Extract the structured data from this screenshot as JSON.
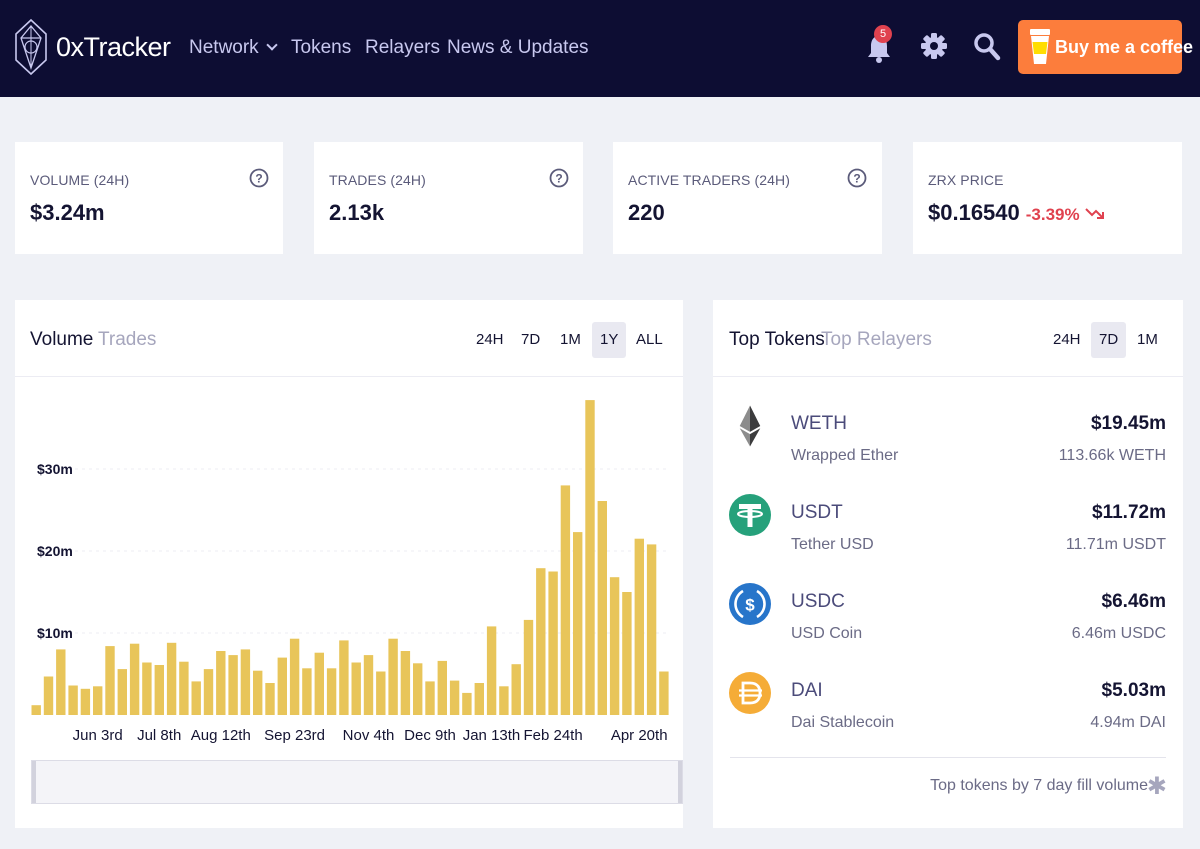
{
  "header": {
    "brand": "0xTracker",
    "nav": [
      {
        "label": "Network",
        "has_dropdown": true
      },
      {
        "label": "Tokens"
      },
      {
        "label": "Relayers"
      },
      {
        "label": "News & Updates"
      }
    ],
    "notification_count": "5",
    "coffee_label": "Buy me a coffee",
    "colors": {
      "background": "#0d0d33",
      "coffee": "#fc7d3c",
      "badge": "#e0424f"
    }
  },
  "stats": [
    {
      "label": "Volume (24h)",
      "value": "$3.24m",
      "has_help": true
    },
    {
      "label": "Trades (24h)",
      "value": "2.13k",
      "has_help": true
    },
    {
      "label": "Active Traders (24h)",
      "value": "220",
      "has_help": true
    },
    {
      "label": "ZRX Price",
      "value": "$0.16540",
      "change": "-3.39%",
      "trend": "down"
    }
  ],
  "volume_panel": {
    "tabs": [
      {
        "label": "Volume",
        "active": true
      },
      {
        "label": "Trades",
        "active": false
      }
    ],
    "periods": [
      {
        "label": "24H",
        "selected": false
      },
      {
        "label": "7D",
        "selected": false
      },
      {
        "label": "1M",
        "selected": false
      },
      {
        "label": "1Y",
        "selected": true
      },
      {
        "label": "ALL",
        "selected": false
      }
    ]
  },
  "chart_data": {
    "type": "bar",
    "color": "#e8c55a",
    "y_tick_labels": [
      "$10m",
      "$20m",
      "$30m"
    ],
    "y_ticks": [
      10,
      20,
      30
    ],
    "ylim": [
      0,
      40
    ],
    "x_tick_labels": [
      "Jun 3rd",
      "Jul 8th",
      "Aug 12th",
      "Sep 23rd",
      "Nov 4th",
      "Dec 9th",
      "Jan 13th",
      "Feb 24th",
      "Apr 20th"
    ],
    "x_tick_bar_index": [
      5,
      10,
      15,
      21,
      27,
      32,
      37,
      42,
      49
    ],
    "values": [
      1.2,
      4.7,
      8,
      3.6,
      3.2,
      3.5,
      8.4,
      5.6,
      8.7,
      6.4,
      6.1,
      8.8,
      6.5,
      4.1,
      5.6,
      7.8,
      7.3,
      8.0,
      5.4,
      3.9,
      7.0,
      9.3,
      5.7,
      7.6,
      5.7,
      9.1,
      6.4,
      7.3,
      5.3,
      9.3,
      7.8,
      6.3,
      4.1,
      6.6,
      4.2,
      2.7,
      3.9,
      10.8,
      3.5,
      6.2,
      11.6,
      17.9,
      17.5,
      28.0,
      22.3,
      38.4,
      26.1,
      16.8,
      15.0,
      21.5,
      20.8,
      5.3
    ]
  },
  "tokens_panel": {
    "tabs": [
      {
        "label": "Top Tokens",
        "active": true
      },
      {
        "label": "Top Relayers",
        "active": false
      }
    ],
    "periods": [
      {
        "label": "24H",
        "selected": false
      },
      {
        "label": "7D",
        "selected": true
      },
      {
        "label": "1M",
        "selected": false
      }
    ],
    "tokens": [
      {
        "symbol": "WETH",
        "name": "Wrapped Ether",
        "usd": "$19.45m",
        "amount": "113.66k WETH",
        "icon": "ethereum-icon"
      },
      {
        "symbol": "USDT",
        "name": "Tether USD",
        "usd": "$11.72m",
        "amount": "11.71m USDT",
        "icon": "tether-icon",
        "color": "#26a17b"
      },
      {
        "symbol": "USDC",
        "name": "USD Coin",
        "usd": "$6.46m",
        "amount": "6.46m USDC",
        "icon": "usdc-icon",
        "color": "#2775ca"
      },
      {
        "symbol": "DAI",
        "name": "Dai Stablecoin",
        "usd": "$5.03m",
        "amount": "4.94m DAI",
        "icon": "dai-icon",
        "color": "#f5ac37"
      }
    ],
    "footer": "Top tokens by 7 day fill volume"
  }
}
